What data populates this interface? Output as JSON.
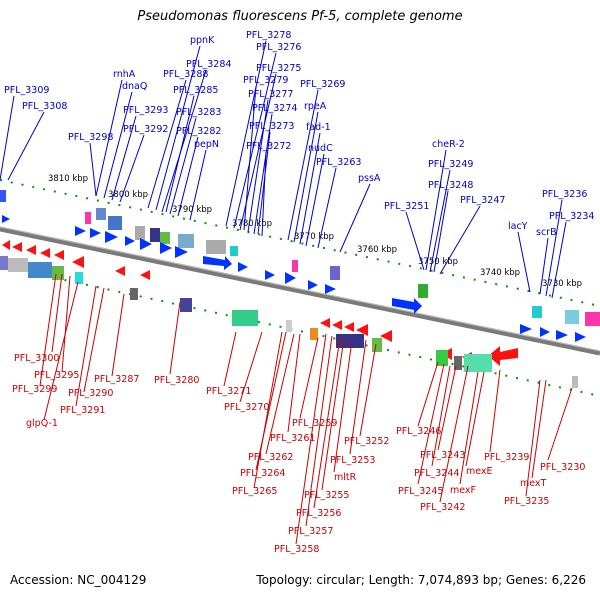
{
  "title": "Pseudomonas fluorescens Pf-5, complete genome",
  "footer": {
    "accession": "Accession: NC_004129",
    "summary": "Topology: circular; Length: 7,074,893 bp; Genes: 6,226"
  },
  "colors": {
    "forward_label": "#0000cc",
    "reverse_label": "#cc0000",
    "forward_gene": "#0033ff",
    "reverse_gene": "#ff1111",
    "backbone": "#888888",
    "tick": "#009900"
  },
  "scale_labels": [
    "3810 kbp",
    "3800 kbp",
    "3790 kbp",
    "3780 kbp",
    "3770 kbp",
    "3760 kbp",
    "3750 kbp",
    "3740 kbp",
    "3730 kbp"
  ],
  "forward_genes": [
    "PFL_3309",
    "PFL_3308",
    "rnhA",
    "dnaQ",
    "PFL_3298",
    "PFL_3293",
    "PFL_3292",
    "PFL_3288",
    "ppnK",
    "PFL_3284",
    "PFL_3285",
    "PFL_3283",
    "PFL_3282",
    "pepN",
    "PFL_3278",
    "PFL_3276",
    "PFL_3275",
    "PFL_3279",
    "PFL_3277",
    "PFL_3274",
    "PFL_3273",
    "PFL_3272",
    "PFL_3269",
    "rpeA",
    "fad-1",
    "nudC",
    "PFL_3263",
    "pssA",
    "cheR-2",
    "PFL_3249",
    "PFL_3248",
    "PFL_3251",
    "PFL_3247",
    "lacY",
    "scrB",
    "PFL_3236",
    "PFL_3234"
  ],
  "reverse_genes": [
    "PFL_3300",
    "PFL_3295",
    "PFL_3299",
    "PFL_3290",
    "PFL_3287",
    "PFL_3291",
    "glpQ-1",
    "PFL_3280",
    "PFL_3271",
    "PFL_3270",
    "PFL_3259",
    "PFL_3261",
    "PFL_3262",
    "PFL_3264",
    "PFL_3265",
    "PFL_3252",
    "PFL_3253",
    "mltR",
    "PFL_3255",
    "PFL_3256",
    "PFL_3257",
    "PFL_3258",
    "PFL_3246",
    "PFL_3243",
    "PFL_3244",
    "PFL_3245",
    "PFL_3242",
    "mexE",
    "mexF",
    "PFL_3239",
    "PFL_3230",
    "mexT",
    "PFL_3235"
  ]
}
